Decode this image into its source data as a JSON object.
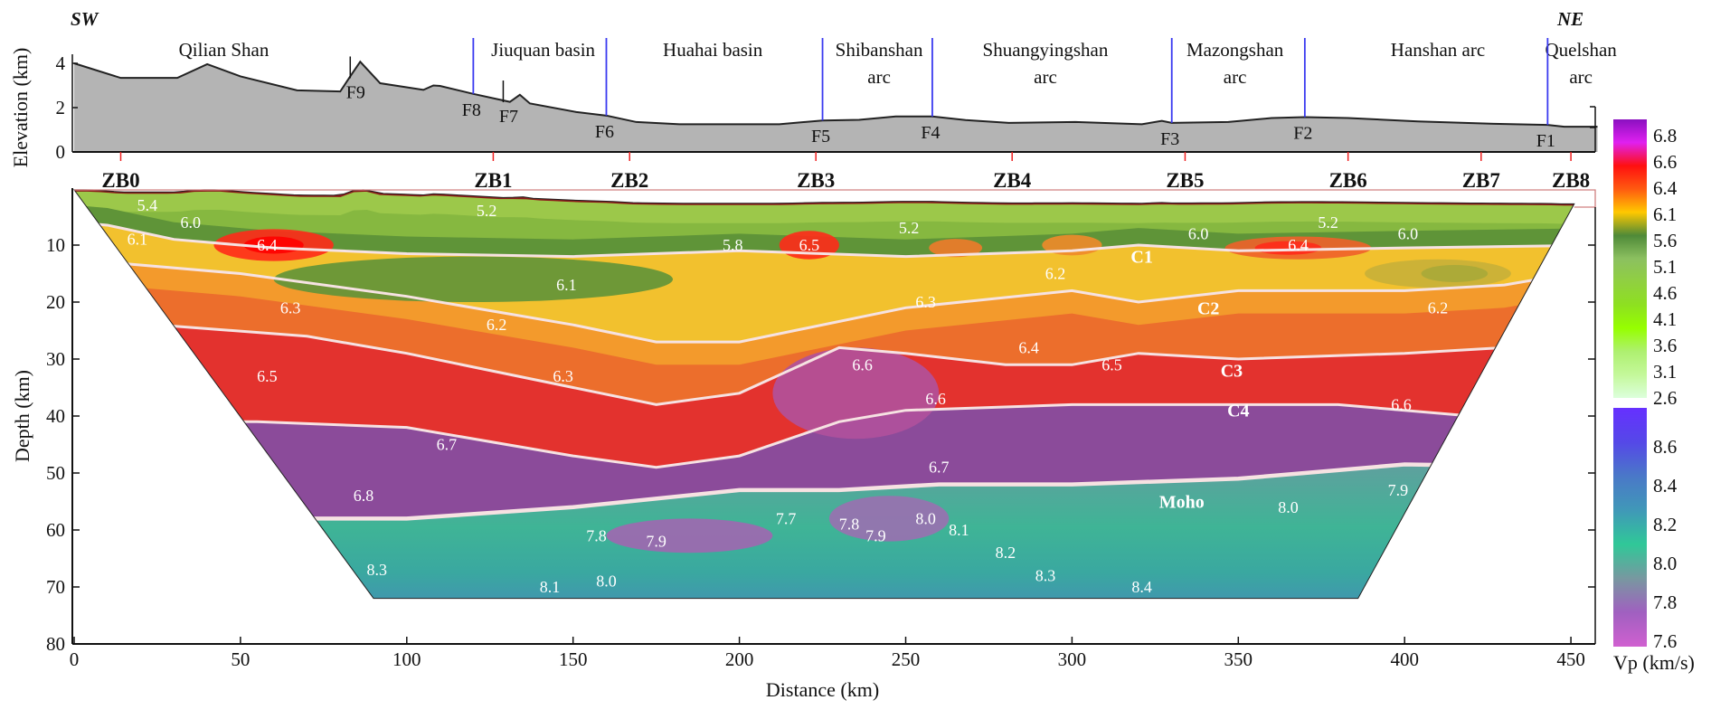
{
  "chart_data": {
    "type": "heatmap",
    "direction_labels": {
      "left": "SW",
      "right": "NE"
    },
    "xlabel": "Distance (km)",
    "xlim": [
      0,
      458
    ],
    "xticks": [
      0,
      50,
      100,
      150,
      200,
      250,
      300,
      350,
      400,
      450
    ],
    "ylabel": "Depth (km)",
    "ylim": [
      80,
      0
    ],
    "yticks": [
      10,
      20,
      30,
      40,
      50,
      60,
      70,
      80
    ],
    "elevation_panel": {
      "ylabel": "Elevation (km)",
      "yticks": [
        0,
        2,
        4
      ],
      "ylim": [
        0,
        4
      ],
      "topography": [
        [
          0,
          4.0
        ],
        [
          14,
          3.34
        ],
        [
          31,
          3.34
        ],
        [
          40,
          3.96
        ],
        [
          50,
          3.41
        ],
        [
          67,
          2.78
        ],
        [
          80,
          2.73
        ],
        [
          83,
          3.41
        ],
        [
          86,
          4.07
        ],
        [
          92,
          3.1
        ],
        [
          105,
          2.8
        ],
        [
          108,
          3.0
        ],
        [
          110,
          2.98
        ],
        [
          120,
          2.62
        ],
        [
          131,
          2.26
        ],
        [
          134,
          2.58
        ],
        [
          137,
          2.19
        ],
        [
          151,
          1.8
        ],
        [
          160,
          1.64
        ],
        [
          169,
          1.35
        ],
        [
          182,
          1.25
        ],
        [
          212,
          1.25
        ],
        [
          225,
          1.42
        ],
        [
          236,
          1.45
        ],
        [
          247,
          1.6
        ],
        [
          258,
          1.6
        ],
        [
          268,
          1.44
        ],
        [
          281,
          1.31
        ],
        [
          301,
          1.35
        ],
        [
          321,
          1.25
        ],
        [
          327,
          1.4
        ],
        [
          330,
          1.31
        ],
        [
          347,
          1.35
        ],
        [
          360,
          1.53
        ],
        [
          370,
          1.57
        ],
        [
          383,
          1.53
        ],
        [
          404,
          1.38
        ],
        [
          427,
          1.27
        ],
        [
          443,
          1.22
        ],
        [
          448,
          1.14
        ],
        [
          458,
          1.14
        ]
      ],
      "faults": [
        {
          "label": "F9",
          "km": 83,
          "boundary": false
        },
        {
          "label": "F8",
          "km": 120,
          "boundary": true
        },
        {
          "label": "F7",
          "km": 129,
          "boundary": false
        },
        {
          "label": "F6",
          "km": 160,
          "boundary": true
        },
        {
          "label": "F5",
          "km": 225,
          "boundary": true
        },
        {
          "label": "F4",
          "km": 258,
          "boundary": true
        },
        {
          "label": "F3",
          "km": 330,
          "boundary": true
        },
        {
          "label": "F2",
          "km": 370,
          "boundary": true
        },
        {
          "label": "F1",
          "km": 443,
          "boundary": true
        }
      ],
      "regions": [
        {
          "lines": [
            "Qilian Shan"
          ],
          "km": 45
        },
        {
          "lines": [
            "Jiuquan basin"
          ],
          "km": 141
        },
        {
          "lines": [
            "Huahai basin"
          ],
          "km": 192
        },
        {
          "lines": [
            "Shibanshan",
            "arc"
          ],
          "km": 242
        },
        {
          "lines": [
            "Shuangyingshan",
            "arc"
          ],
          "km": 292
        },
        {
          "lines": [
            "Mazongshan",
            "arc"
          ],
          "km": 349
        },
        {
          "lines": [
            "Hanshan arc"
          ],
          "km": 410
        },
        {
          "lines": [
            "Quelshan",
            "arc"
          ],
          "km": 453
        }
      ]
    },
    "stations": [
      {
        "label": "ZB0",
        "km": 14
      },
      {
        "label": "ZB1",
        "km": 126
      },
      {
        "label": "ZB2",
        "km": 167
      },
      {
        "label": "ZB3",
        "km": 223
      },
      {
        "label": "ZB4",
        "km": 282
      },
      {
        "label": "ZB5",
        "km": 334
      },
      {
        "label": "ZB6",
        "km": 383
      },
      {
        "label": "ZB7",
        "km": 423
      },
      {
        "label": "ZB8",
        "km": 450
      }
    ],
    "model_extent": {
      "top_km": [
        0,
        451
      ],
      "bottom_km": [
        90,
        386
      ],
      "bottom_depth": 72
    },
    "interfaces": [
      {
        "name": "C1",
        "points": [
          [
            0,
            6
          ],
          [
            10,
            6.5
          ],
          [
            30,
            9
          ],
          [
            60,
            10.5
          ],
          [
            100,
            11.5
          ],
          [
            150,
            12
          ],
          [
            200,
            11
          ],
          [
            250,
            12
          ],
          [
            300,
            11
          ],
          [
            320,
            10
          ],
          [
            350,
            11
          ],
          [
            400,
            10.5
          ],
          [
            460,
            10
          ]
        ]
      },
      {
        "name": "C2",
        "points": [
          [
            0,
            12.5
          ],
          [
            10,
            13
          ],
          [
            50,
            15
          ],
          [
            100,
            19
          ],
          [
            150,
            24
          ],
          [
            175,
            27
          ],
          [
            200,
            27
          ],
          [
            250,
            21
          ],
          [
            300,
            18
          ],
          [
            320,
            20
          ],
          [
            350,
            18
          ],
          [
            400,
            18
          ],
          [
            430,
            17
          ],
          [
            460,
            14
          ]
        ]
      },
      {
        "name": "C3",
        "points": [
          [
            0,
            23
          ],
          [
            25,
            24
          ],
          [
            70,
            26
          ],
          [
            100,
            29
          ],
          [
            150,
            35
          ],
          [
            175,
            38
          ],
          [
            200,
            36
          ],
          [
            230,
            28
          ],
          [
            250,
            29
          ],
          [
            280,
            31
          ],
          [
            300,
            31
          ],
          [
            320,
            29
          ],
          [
            350,
            30
          ],
          [
            400,
            29
          ],
          [
            460,
            27
          ]
        ]
      },
      {
        "name": "C4",
        "points": [
          [
            0,
            41
          ],
          [
            55,
            41
          ],
          [
            100,
            42
          ],
          [
            150,
            47
          ],
          [
            175,
            49
          ],
          [
            200,
            47
          ],
          [
            230,
            41
          ],
          [
            250,
            39
          ],
          [
            300,
            38
          ],
          [
            350,
            38
          ],
          [
            380,
            38
          ],
          [
            420,
            40
          ],
          [
            460,
            40
          ]
        ]
      },
      {
        "name": "Moho",
        "points": [
          [
            0,
            58
          ],
          [
            75,
            58
          ],
          [
            100,
            58
          ],
          [
            150,
            56
          ],
          [
            200,
            53
          ],
          [
            230,
            53
          ],
          [
            260,
            52
          ],
          [
            300,
            52
          ],
          [
            350,
            51
          ],
          [
            370,
            50
          ],
          [
            400,
            48.5
          ],
          [
            460,
            49
          ]
        ]
      }
    ],
    "interface_labels": [
      {
        "text": "C1",
        "km": 321,
        "depth": 12
      },
      {
        "text": "C2",
        "km": 341,
        "depth": 21
      },
      {
        "text": "C3",
        "km": 348,
        "depth": 32
      },
      {
        "text": "C4",
        "km": 350,
        "depth": 39
      },
      {
        "text": "Moho",
        "km": 333,
        "depth": 55
      }
    ],
    "velocity_labels": [
      {
        "text": "5.4",
        "km": 22,
        "depth": 3
      },
      {
        "text": "6.0",
        "km": 35,
        "depth": 6
      },
      {
        "text": "6.1",
        "km": 19,
        "depth": 9
      },
      {
        "text": "6.4",
        "km": 58,
        "depth": 10
      },
      {
        "text": "5.2",
        "km": 124,
        "depth": 4
      },
      {
        "text": "5.8",
        "km": 198,
        "depth": 10
      },
      {
        "text": "6.5",
        "km": 221,
        "depth": 10
      },
      {
        "text": "5.2",
        "km": 251,
        "depth": 7
      },
      {
        "text": "6.0",
        "km": 338,
        "depth": 8
      },
      {
        "text": "6.4",
        "km": 368,
        "depth": 10
      },
      {
        "text": "5.2",
        "km": 377,
        "depth": 6
      },
      {
        "text": "6.0",
        "km": 401,
        "depth": 8
      },
      {
        "text": "6.2",
        "km": 295,
        "depth": 15
      },
      {
        "text": "6.2",
        "km": 410,
        "depth": 21
      },
      {
        "text": "6.1",
        "km": 148,
        "depth": 17
      },
      {
        "text": "6.3",
        "km": 65,
        "depth": 21
      },
      {
        "text": "6.2",
        "km": 127,
        "depth": 24
      },
      {
        "text": "6.3",
        "km": 256,
        "depth": 20
      },
      {
        "text": "6.4",
        "km": 287,
        "depth": 28
      },
      {
        "text": "6.5",
        "km": 312,
        "depth": 31
      },
      {
        "text": "6.5",
        "km": 58,
        "depth": 33
      },
      {
        "text": "6.3",
        "km": 147,
        "depth": 33
      },
      {
        "text": "6.6",
        "km": 237,
        "depth": 31
      },
      {
        "text": "6.6",
        "km": 259,
        "depth": 37
      },
      {
        "text": "6.6",
        "km": 399,
        "depth": 38
      },
      {
        "text": "6.7",
        "km": 112,
        "depth": 45
      },
      {
        "text": "6.7",
        "km": 260,
        "depth": 49
      },
      {
        "text": "6.8",
        "km": 87,
        "depth": 54
      },
      {
        "text": "7.9",
        "km": 398,
        "depth": 53
      },
      {
        "text": "8.0",
        "km": 365,
        "depth": 56
      },
      {
        "text": "7.8",
        "km": 157,
        "depth": 61
      },
      {
        "text": "7.9",
        "km": 175,
        "depth": 62
      },
      {
        "text": "7.7",
        "km": 214,
        "depth": 58
      },
      {
        "text": "7.8",
        "km": 233,
        "depth": 59
      },
      {
        "text": "7.9",
        "km": 241,
        "depth": 61
      },
      {
        "text": "8.0",
        "km": 256,
        "depth": 58
      },
      {
        "text": "8.1",
        "km": 266,
        "depth": 60
      },
      {
        "text": "8.3",
        "km": 91,
        "depth": 67
      },
      {
        "text": "8.0",
        "km": 160,
        "depth": 69
      },
      {
        "text": "8.1",
        "km": 143,
        "depth": 70
      },
      {
        "text": "8.2",
        "km": 280,
        "depth": 64
      },
      {
        "text": "8.3",
        "km": 292,
        "depth": 68
      },
      {
        "text": "8.4",
        "km": 321,
        "depth": 70
      }
    ],
    "layer_colors": {
      "sediment": "#9cc84a",
      "upper_crust": "#86b840",
      "upper_crust_dark": "#5f9438",
      "c1_c2": "#f2c12e",
      "c2_c3": "#ec6e2c",
      "c3_c4": "#e3322e",
      "c4_moho": "#8b4b9a",
      "mantle_top": "#5fa09e",
      "mantle_mid": "#3fb496",
      "mantle_bottom": "#4a7ec2",
      "anomaly_high": "#ff2a1a",
      "anomaly_purple": "#b0519c",
      "interface_line": "#f6e2e2",
      "surface_line": "#8b1a1a"
    },
    "colorbar": {
      "label": "Vp (km/s)",
      "upper": {
        "ticks": [
          "6.8",
          "6.6",
          "6.4",
          "6.1",
          "5.6",
          "5.1",
          "4.6",
          "4.1",
          "3.6",
          "3.1",
          "2.6"
        ],
        "colors": [
          "#8a10c0",
          "#e020f0",
          "#ff1010",
          "#ff5a10",
          "#ffc800",
          "#4f8a38",
          "#8cc060",
          "#90d040",
          "#8ee020",
          "#96ff00",
          "#aef070",
          "#c4f89a",
          "#dcffdc"
        ]
      },
      "lower": {
        "ticks": [
          "8.6",
          "8.4",
          "8.2",
          "8.0",
          "7.8",
          "7.6"
        ],
        "colors": [
          "#6630ff",
          "#5548e8",
          "#4a78c8",
          "#4098b8",
          "#30c898",
          "#7898a0",
          "#a060c0",
          "#d060d0"
        ]
      }
    }
  }
}
